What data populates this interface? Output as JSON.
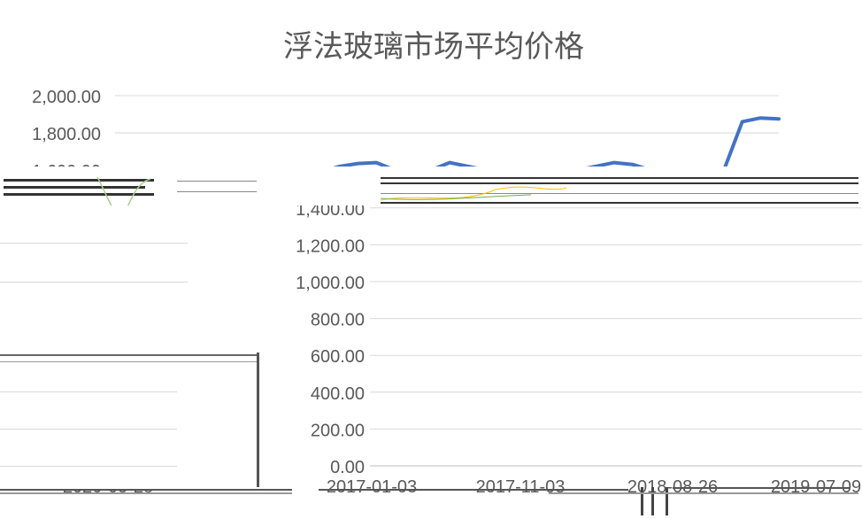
{
  "chart_data": {
    "type": "line",
    "title": "浮法玻璃市场平均价格",
    "xlabel": "",
    "ylabel": "",
    "ylim": [
      0,
      2000
    ],
    "yticks": [
      "0.00",
      "200.00",
      "400.00",
      "600.00",
      "800.00",
      "1,000.00",
      "1,200.00",
      "1,400.00",
      "1,600.00",
      "1,800.00",
      "2,000.00"
    ],
    "upper_yticks": [
      "2,000.00",
      "1,800.00",
      "1,600.00"
    ],
    "xticks": [
      "2020-05-28",
      "2017-01-03",
      "2017-11-03",
      "2018-08-26",
      "2019-07-09"
    ],
    "series": [
      {
        "color": "#4472c4",
        "values": [
          1560,
          1575,
          1590,
          1620,
          1635,
          1640,
          1600,
          1590,
          1600,
          1640,
          1620,
          1600,
          1590,
          1580,
          1580,
          1590,
          1600,
          1620,
          1640,
          1630,
          1600,
          1580,
          1560,
          1560,
          1600,
          1860,
          1880,
          1875
        ]
      }
    ],
    "grid": true
  }
}
